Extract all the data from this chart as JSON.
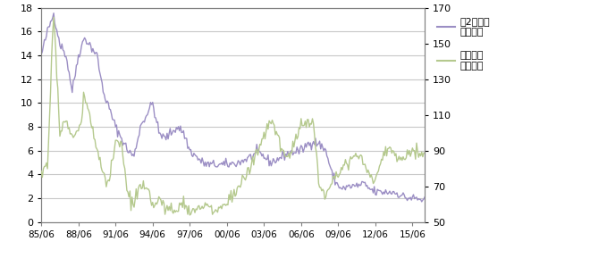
{
  "left_color": "#9b8ec4",
  "right_color": "#b5c98e",
  "left_ylim": [
    0,
    18
  ],
  "right_ylim": [
    50,
    170
  ],
  "left_yticks": [
    0,
    2,
    4,
    6,
    8,
    10,
    12,
    14,
    16,
    18
  ],
  "right_yticks": [
    50,
    70,
    90,
    110,
    130,
    150,
    170
  ],
  "xtick_labels": [
    "85/06",
    "88/06",
    "91/06",
    "94/06",
    "97/06",
    "00/06",
    "03/06",
    "06/06",
    "09/06",
    "12/06",
    "15/06"
  ],
  "legend1": "豪2年金利\n（右軸）",
  "legend2": "豪ドル円\n（左軸）",
  "background_color": "#ffffff",
  "grid_color": "#c8c8c8",
  "tick_color": "#808080",
  "line_width": 1.0,
  "fig_width": 6.6,
  "fig_height": 2.89,
  "dpi": 100
}
